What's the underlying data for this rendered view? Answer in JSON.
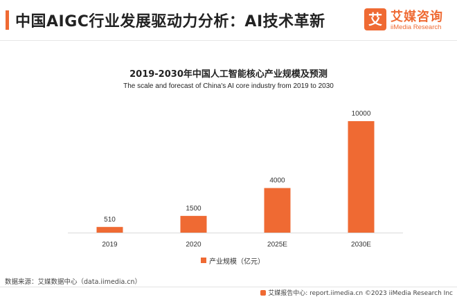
{
  "header": {
    "title": "中国AIGC行业发展驱动力分析：AI技术革新",
    "logo": {
      "mark": "艾",
      "name": "艾媒咨询",
      "sub": "iiMedia Research"
    }
  },
  "colors": {
    "accent": "#ef6a33",
    "bar": "#ef6a33",
    "axis": "#d9d9d9"
  },
  "chart_data": {
    "type": "bar",
    "title": "2019-2030年中国人工智能核心产业规模及预测",
    "subtitle": "The scale and forecast of China's AI core industry from 2019 to 2030",
    "categories": [
      "2019",
      "2020",
      "2025E",
      "2030E"
    ],
    "series": [
      {
        "name": "产业规模（亿元）",
        "values": [
          510,
          1500,
          4000,
          10000
        ]
      }
    ],
    "data_labels": [
      "510",
      "1500",
      "4000",
      "10000"
    ],
    "ylim": [
      0,
      10000
    ],
    "grid": false,
    "legend": "bottom-center",
    "xlabel": "",
    "ylabel": ""
  },
  "footer": {
    "source": "数据来源：艾媒数据中心（data.iimedia.cn）",
    "credit": "艾媒报告中心: report.iimedia.cn  ©2023  iiMedia Research  Inc"
  }
}
